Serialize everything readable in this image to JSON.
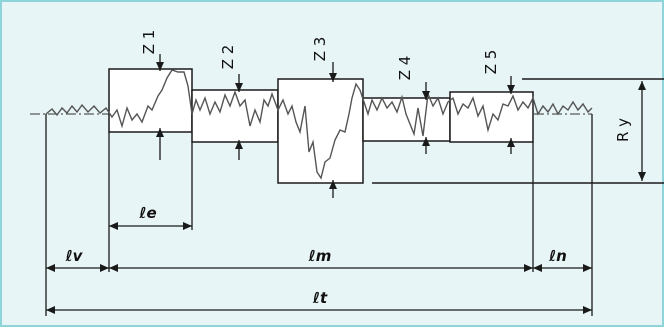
{
  "diagram": {
    "labels": {
      "z1": "Z 1",
      "z2": "Z 2",
      "z3": "Z 3",
      "z4": "Z 4",
      "z5": "Z 5",
      "ry": "R y",
      "le": "ℓe",
      "lv": "ℓv",
      "lm": "ℓm",
      "ln": "ℓn",
      "lt": "ℓt"
    },
    "colors": {
      "background": "#e8f5f6",
      "border": "#8fd4d8",
      "ink": "#1a1a1a"
    }
  }
}
